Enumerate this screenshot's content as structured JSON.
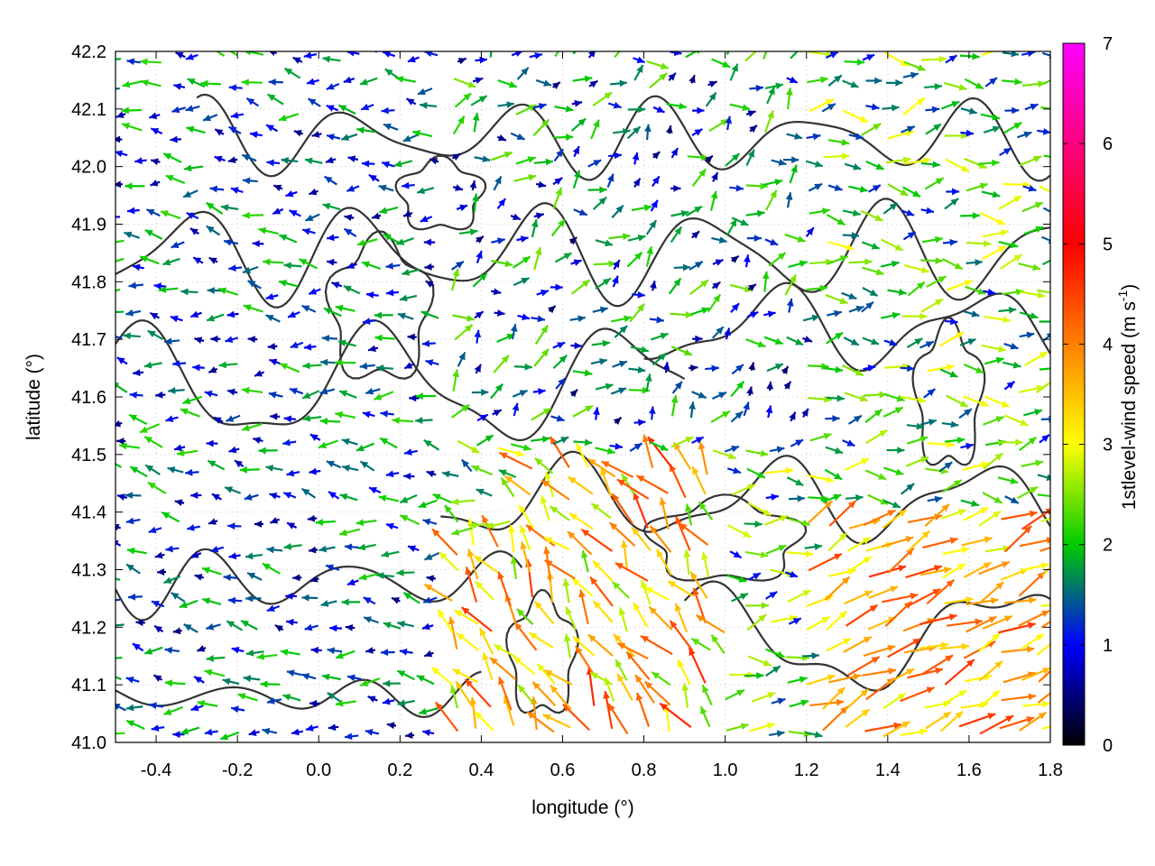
{
  "chart_data": {
    "type": "vector-field",
    "xlabel": "longitude (°)",
    "ylabel": "latitude (°)",
    "xlim": [
      -0.5,
      1.8
    ],
    "ylim": [
      41.0,
      42.2
    ],
    "xticks": [
      "-0.4",
      "-0.2",
      "0.0",
      "0.2",
      "0.4",
      "0.6",
      "0.8",
      "1.0",
      "1.2",
      "1.4",
      "1.6",
      "1.8"
    ],
    "yticks": [
      "41.0",
      "41.1",
      "41.2",
      "41.3",
      "41.4",
      "41.5",
      "41.6",
      "41.7",
      "41.8",
      "41.9",
      "42.0",
      "42.1",
      "42.2"
    ],
    "grid": true,
    "colorbar": {
      "label_main": "1stlevel-wind speed (m s",
      "label_sup": "-1",
      "label_end": ")",
      "range": [
        0,
        7
      ],
      "ticks": [
        "0",
        "1",
        "2",
        "3",
        "4",
        "5",
        "6",
        "7"
      ],
      "palette": [
        "#000000",
        "#0000ff",
        "#00cc00",
        "#ffff00",
        "#ff8000",
        "#ff0000",
        "#ff00ff"
      ]
    },
    "wind_regions": [
      {
        "region": "west",
        "lon": [
          -0.5,
          0.3
        ],
        "lat": [
          41.0,
          42.2
        ],
        "direction": "westward",
        "speed_ms": [
          0.5,
          2.2
        ]
      },
      {
        "region": "north-central",
        "lon": [
          0.3,
          1.2
        ],
        "lat": [
          41.6,
          42.2
        ],
        "direction": "north-eastward",
        "speed_ms": [
          0.5,
          2.5
        ]
      },
      {
        "region": "south-central",
        "lon": [
          0.3,
          1.0
        ],
        "lat": [
          41.0,
          41.5
        ],
        "direction": "north-westward",
        "speed_ms": [
          2.5,
          4.8
        ]
      },
      {
        "region": "south-east",
        "lon": [
          1.2,
          1.8
        ],
        "lat": [
          41.0,
          41.4
        ],
        "direction": "north-eastward",
        "speed_ms": [
          3.0,
          4.5
        ]
      },
      {
        "region": "east",
        "lon": [
          1.2,
          1.8
        ],
        "lat": [
          41.4,
          42.2
        ],
        "direction": "eastward",
        "speed_ms": [
          1.0,
          3.0
        ]
      }
    ],
    "contours": "terrain elevation isolines (dark gray)"
  },
  "colors": {
    "contour": "#333333",
    "grid": "#c8c8c8"
  }
}
